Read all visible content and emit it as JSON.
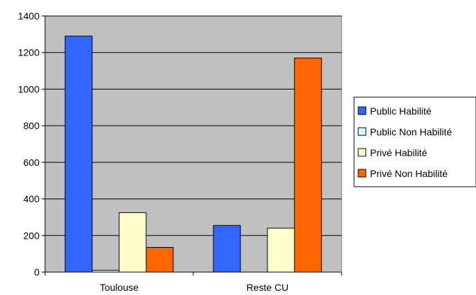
{
  "chart_data": {
    "type": "bar",
    "categories": [
      "Toulouse",
      "Reste CU"
    ],
    "series": [
      {
        "name": "Public Habilité",
        "values": [
          1290,
          255
        ],
        "color": "#3366FF"
      },
      {
        "name": "Public Non Habilité",
        "values": [
          10,
          0
        ],
        "color": "#CCFFFF"
      },
      {
        "name": "Privé Habilité",
        "values": [
          325,
          240
        ],
        "color": "#FFFFCC"
      },
      {
        "name": "Privé Non Habilité",
        "values": [
          135,
          1170
        ],
        "color": "#FF6600"
      }
    ],
    "title": "",
    "xlabel": "",
    "ylabel": "",
    "ylim": [
      0,
      1400
    ],
    "yticks": [
      "0",
      "200",
      "400",
      "600",
      "800",
      "1000",
      "1200",
      "1400"
    ],
    "grid": true,
    "legend_position": "right",
    "plot_background": "#C0C0C0"
  }
}
